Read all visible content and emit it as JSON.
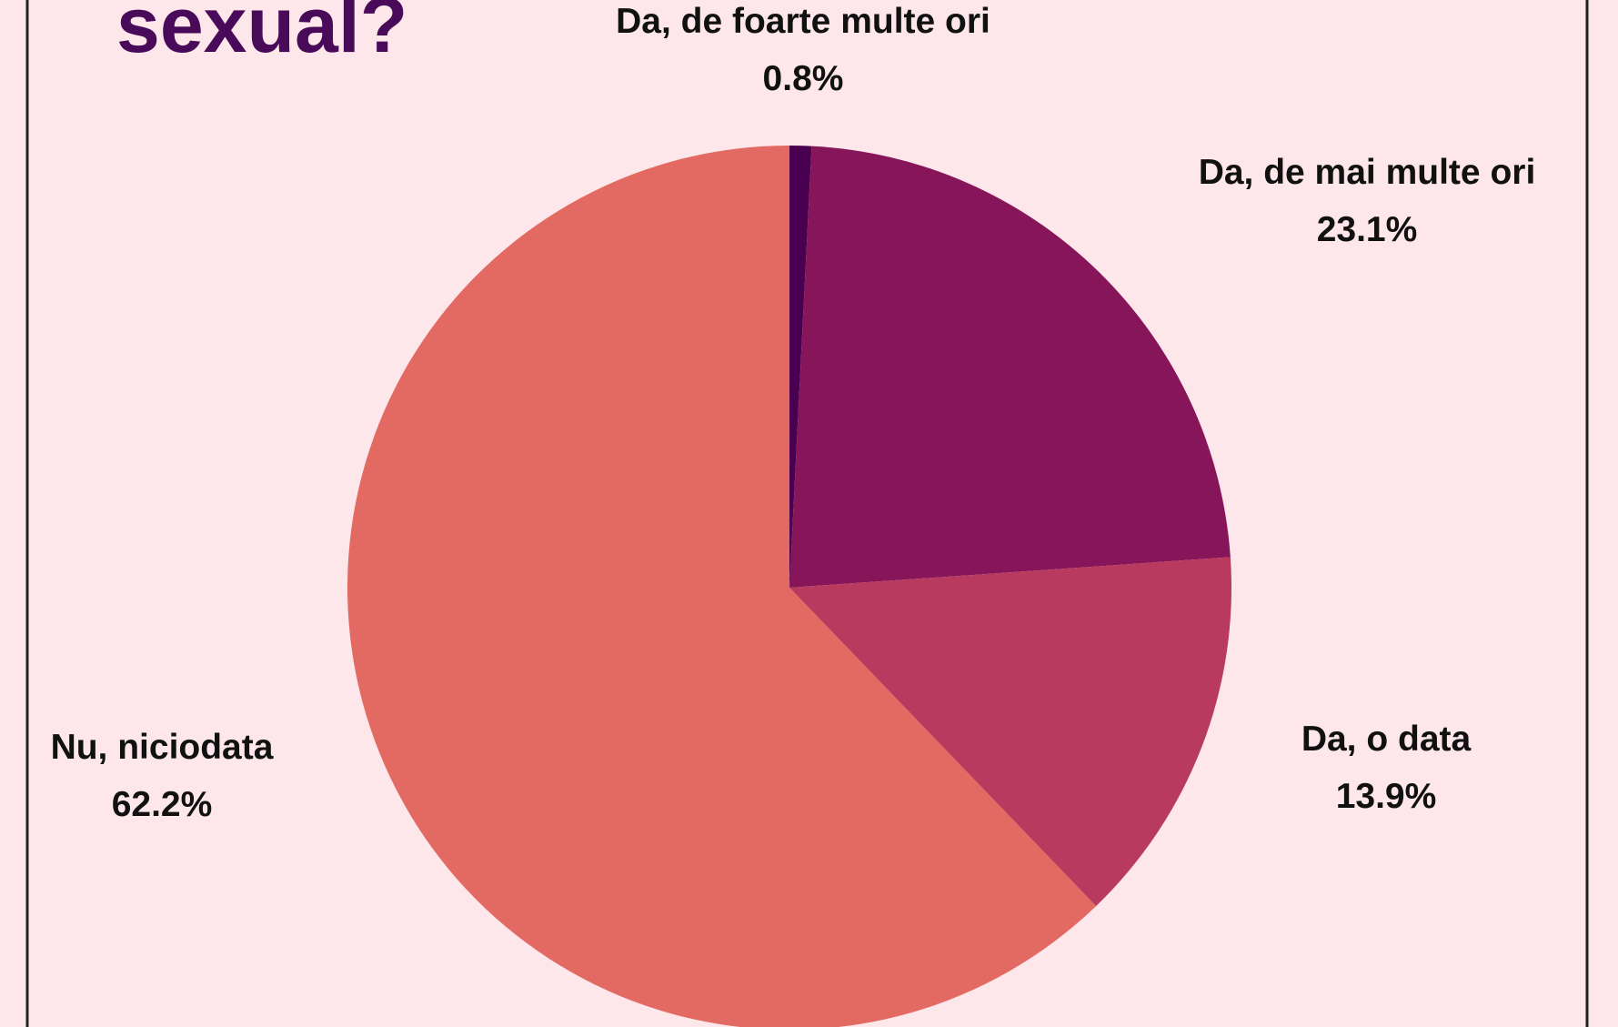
{
  "chart_data": {
    "type": "pie",
    "title": "sexual?",
    "categories": [
      "Da, de foarte multe ori",
      "Da, de mai multe ori",
      "Da, o data",
      "Nu, niciodata"
    ],
    "values": [
      0.8,
      23.1,
      13.9,
      62.2
    ],
    "value_labels": [
      "0.8%",
      "23.1%",
      "13.9%",
      "62.2%"
    ],
    "colors": [
      "#4a0050",
      "#87155a",
      "#b83a5e",
      "#e26a62"
    ]
  }
}
